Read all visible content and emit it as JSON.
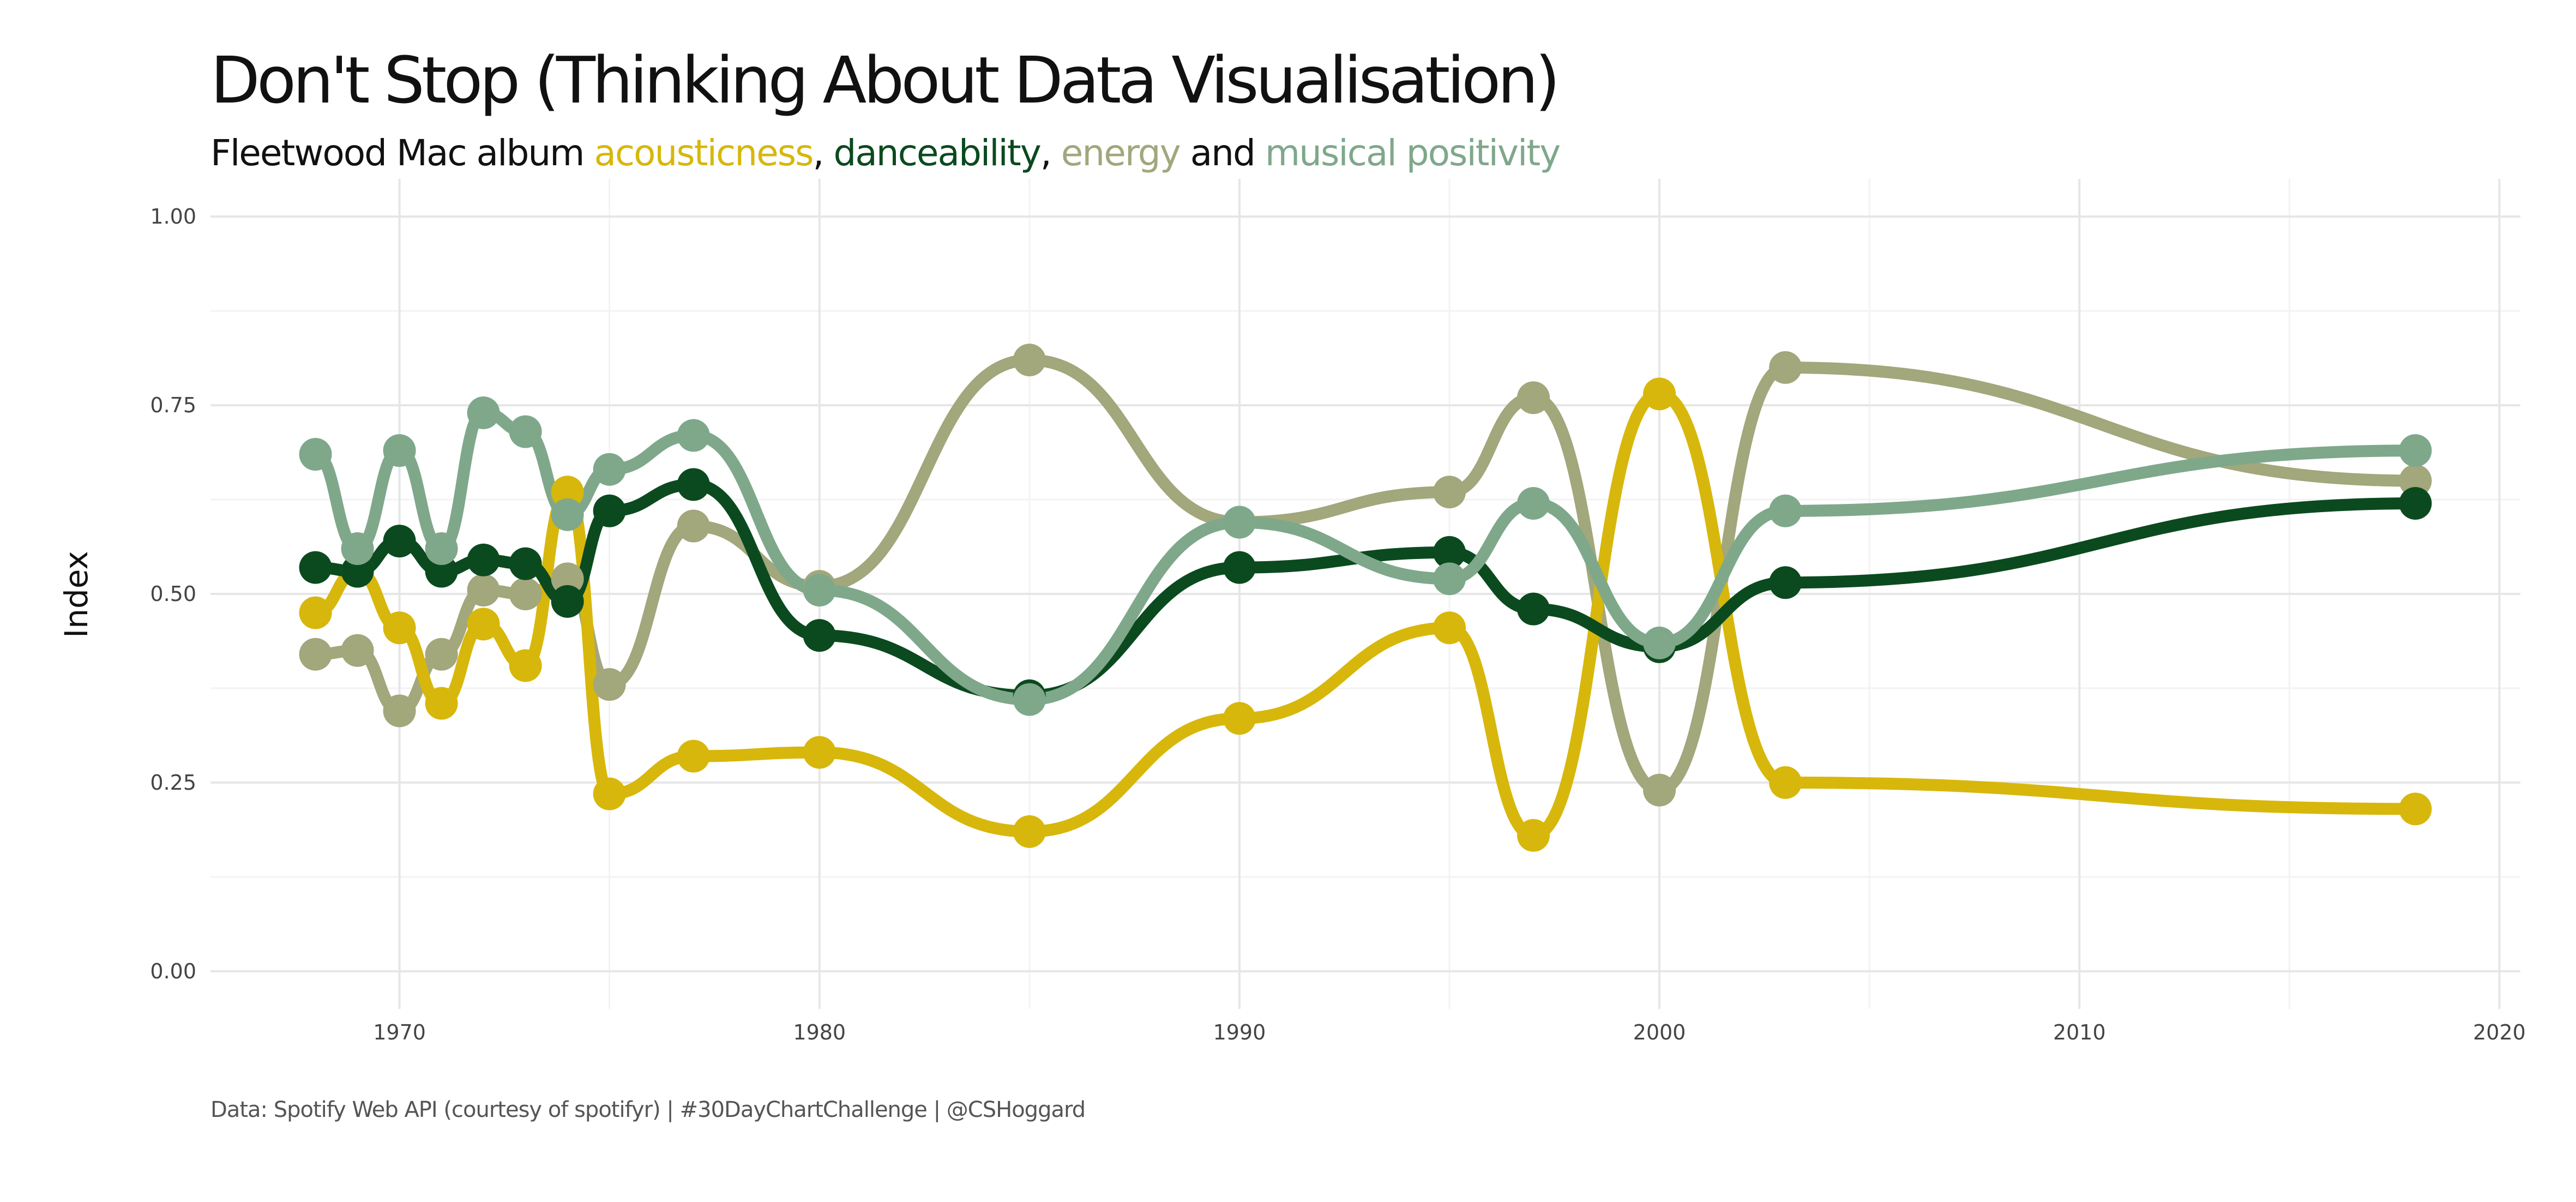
{
  "title": "Don't Stop (Thinking About Data Visualisation)",
  "subtitle": {
    "prefix": "Fleetwood Mac album ",
    "acousticness": "acousticness",
    "sep1": ", ",
    "danceability": "danceability",
    "sep2": ", ",
    "energy": "energy",
    "and": " and ",
    "valence": "musical positivity"
  },
  "caption": "Data: Spotify Web API (courtesy of spotifyr) | #30DayChartChallenge | @CSHoggard",
  "colors": {
    "acousticness": "#D7B70B",
    "danceability": "#0B4A1F",
    "energy": "#A2A77C",
    "valence": "#7FA88A",
    "grid_major": "#E6E6E6",
    "grid_minor": "#F3F3F3"
  },
  "chart_data": {
    "type": "line",
    "ylabel": "Index",
    "xlabel": "",
    "xlim": [
      1965.5,
      2020.5
    ],
    "ylim": [
      -0.05,
      1.05
    ],
    "x_ticks": [
      1970,
      1980,
      1990,
      2000,
      2010,
      2020
    ],
    "x_minor_ticks": [
      1975,
      1985,
      1995,
      2005,
      2015
    ],
    "y_ticks": [
      0.0,
      0.25,
      0.5,
      0.75,
      1.0
    ],
    "y_tick_labels": [
      "0.00",
      "0.25",
      "0.50",
      "0.75",
      "1.00"
    ],
    "y_minor_ticks": [
      0.125,
      0.375,
      0.625,
      0.875
    ],
    "x": [
      1968,
      1969,
      1970,
      1971,
      1972,
      1973,
      1974,
      1975,
      1977,
      1980,
      1985,
      1990,
      1995,
      1997,
      2000,
      2003,
      2018
    ],
    "series": [
      {
        "key": "energy",
        "values": [
          0.42,
          0.425,
          0.345,
          0.42,
          0.505,
          0.5,
          0.52,
          0.38,
          0.59,
          0.51,
          0.81,
          0.595,
          0.635,
          0.76,
          0.24,
          0.8,
          0.65
        ]
      },
      {
        "key": "acousticness",
        "values": [
          0.475,
          0.53,
          0.455,
          0.355,
          0.46,
          0.405,
          0.635,
          0.235,
          0.285,
          0.29,
          0.185,
          0.335,
          0.455,
          0.18,
          0.765,
          0.25,
          0.215
        ]
      },
      {
        "key": "danceability",
        "values": [
          0.535,
          0.53,
          0.57,
          0.53,
          0.545,
          0.54,
          0.49,
          0.61,
          0.645,
          0.445,
          0.365,
          0.535,
          0.555,
          0.48,
          0.43,
          0.515,
          0.62
        ]
      },
      {
        "key": "valence",
        "values": [
          0.685,
          0.56,
          0.69,
          0.56,
          0.74,
          0.715,
          0.605,
          0.665,
          0.71,
          0.505,
          0.36,
          0.595,
          0.52,
          0.62,
          0.435,
          0.61,
          0.69
        ]
      }
    ]
  }
}
